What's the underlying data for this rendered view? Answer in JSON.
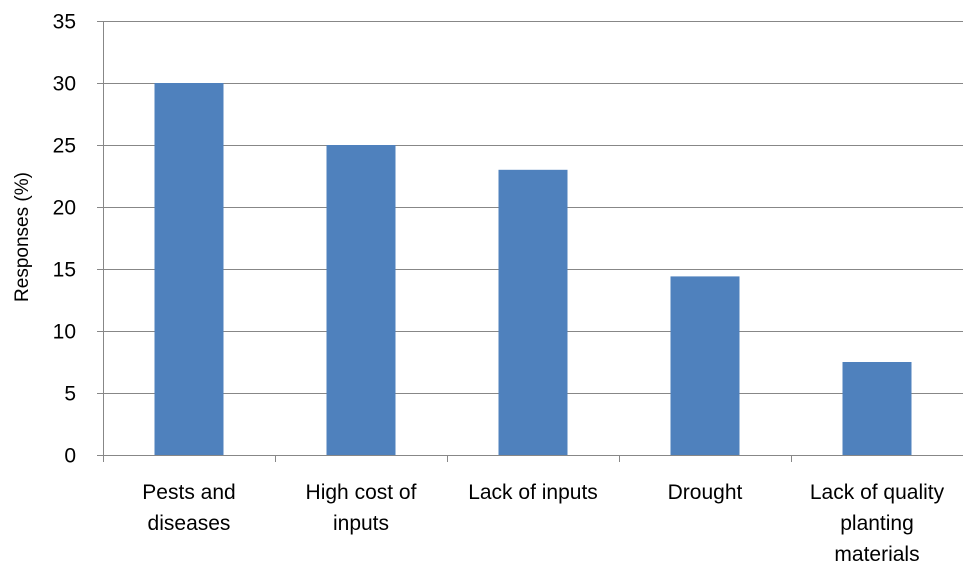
{
  "chart_data": {
    "type": "bar",
    "categories": [
      [
        "Pests and",
        "diseases"
      ],
      [
        "High cost of",
        "inputs"
      ],
      [
        "Lack of inputs"
      ],
      [
        "Drought"
      ],
      [
        "Lack of quality",
        "planting",
        "materials"
      ]
    ],
    "values": [
      30,
      25,
      23,
      14.4,
      7.5
    ],
    "ylabel": "Responses (%)",
    "ylim": [
      0,
      35
    ],
    "yticks": [
      0,
      5,
      10,
      15,
      20,
      25,
      30,
      35
    ],
    "grid": true,
    "bar_color": "#4f81bd"
  }
}
